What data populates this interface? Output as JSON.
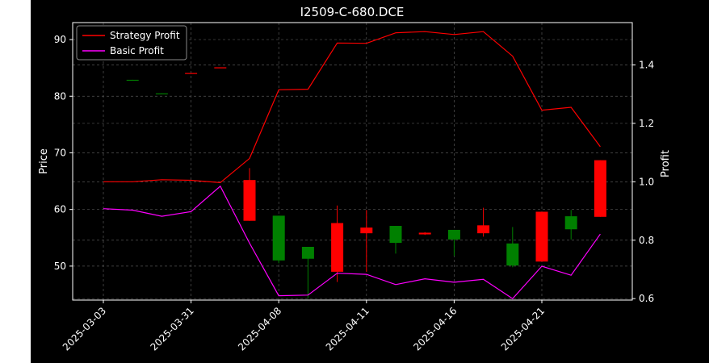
{
  "chart_data": {
    "type": "candlestick+line",
    "title": "I2509-C-680.DCE",
    "ylabel_left": "Price",
    "ylabel_right": "Profit",
    "ylim_left": [
      44,
      93
    ],
    "ylim_right": [
      0.595,
      1.545
    ],
    "yticks_left": [
      50,
      60,
      70,
      80,
      90
    ],
    "yticks_right": [
      0.6,
      0.8,
      1.0,
      1.2,
      1.4
    ],
    "xtick_labels": [
      {
        "index": 0,
        "label": "2025-03-03"
      },
      {
        "index": 3,
        "label": "2025-03-31"
      },
      {
        "index": 6,
        "label": "2025-04-08"
      },
      {
        "index": 9,
        "label": "2025-04-11"
      },
      {
        "index": 12,
        "label": "2025-04-16"
      },
      {
        "index": 15,
        "label": "2025-04-21"
      }
    ],
    "grid": true,
    "legend_position": "upper-left",
    "colors": {
      "background": "#000000",
      "up": "#ff0000",
      "down": "#008000",
      "strategy": "#ff0000",
      "basic": "#ff00ff",
      "grid": "#555555",
      "text": "#ffffff"
    },
    "candles": [
      {
        "i": 1,
        "open": 82.9,
        "close": 82.8,
        "high": 82.9,
        "low": 82.8
      },
      {
        "i": 2,
        "open": 80.5,
        "close": 80.4,
        "high": 80.5,
        "low": 80.4
      },
      {
        "i": 3,
        "open": 84.0,
        "close": 84.1,
        "high": 84.1,
        "low": 84.0
      },
      {
        "i": 4,
        "open": 85.0,
        "close": 85.1,
        "high": 85.1,
        "low": 85.0
      },
      {
        "i": 5,
        "open": 58.0,
        "close": 65.2,
        "high": 67.3,
        "low": 58.0
      },
      {
        "i": 6,
        "open": 58.9,
        "close": 51.0,
        "high": 58.9,
        "low": 50.5
      },
      {
        "i": 7,
        "open": 53.4,
        "close": 51.3,
        "high": 53.4,
        "low": 44.3
      },
      {
        "i": 8,
        "open": 49.0,
        "close": 57.6,
        "high": 60.7,
        "low": 47.2
      },
      {
        "i": 9,
        "open": 55.8,
        "close": 56.8,
        "high": 59.9,
        "low": 49.0
      },
      {
        "i": 10,
        "open": 57.1,
        "close": 54.1,
        "high": 57.1,
        "low": 52.2
      },
      {
        "i": 11,
        "open": 55.6,
        "close": 55.9,
        "high": 56.0,
        "low": 55.5
      },
      {
        "i": 12,
        "open": 56.4,
        "close": 54.7,
        "high": 56.4,
        "low": 51.8
      },
      {
        "i": 13,
        "open": 55.8,
        "close": 57.2,
        "high": 60.3,
        "low": 55.2
      },
      {
        "i": 14,
        "open": 54.0,
        "close": 50.1,
        "high": 56.9,
        "low": 49.8
      },
      {
        "i": 15,
        "open": 50.8,
        "close": 59.6,
        "high": 59.6,
        "low": 50.8
      },
      {
        "i": 16,
        "open": 58.8,
        "close": 56.5,
        "high": 59.9,
        "low": 54.7
      },
      {
        "i": 17,
        "open": 58.7,
        "close": 68.7,
        "high": 68.7,
        "low": 58.7
      }
    ],
    "series": [
      {
        "name": "Strategy Profit",
        "color": "#ff0000",
        "values": [
          1.0,
          1.0,
          1.007,
          1.005,
          0.997,
          1.08,
          1.315,
          1.317,
          1.475,
          1.474,
          1.51,
          1.514,
          1.504,
          1.514,
          1.43,
          1.245,
          1.255,
          1.12
        ]
      },
      {
        "name": "Basic Profit",
        "color": "#ff00ff",
        "values": [
          0.908,
          0.903,
          0.882,
          0.898,
          0.985,
          0.79,
          0.61,
          0.612,
          0.687,
          0.683,
          0.648,
          0.668,
          0.656,
          0.666,
          0.6,
          0.711,
          0.68,
          0.821
        ]
      }
    ]
  }
}
